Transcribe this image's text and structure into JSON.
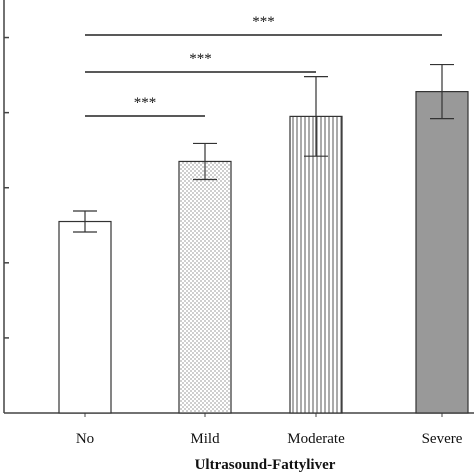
{
  "chart_data": {
    "type": "bar",
    "title": "",
    "xlabel": "Ultrasound-Fattyliver",
    "ylabel": "",
    "categories": [
      "No",
      "Mild",
      "Moderate",
      "Severe"
    ],
    "values": [
      2.55,
      3.35,
      3.95,
      4.28
    ],
    "error": [
      0.14,
      0.24,
      0.53,
      0.36
    ],
    "ylim": [
      0,
      5.5
    ],
    "y_ticks": [
      1,
      2,
      3,
      4,
      5
    ],
    "bar_fills": [
      "white",
      "dots",
      "vertical-lines",
      "solid-gray"
    ],
    "colors": {
      "axis": "#444444",
      "bar_stroke": "#333333",
      "solid_fill": "#999999",
      "pattern": "#555555"
    },
    "grid": false,
    "legend": "none",
    "significance": [
      {
        "from": "No",
        "to": "Mild",
        "label": "***"
      },
      {
        "from": "No",
        "to": "Moderate",
        "label": "***"
      },
      {
        "from": "No",
        "to": "Severe",
        "label": "***"
      }
    ]
  }
}
